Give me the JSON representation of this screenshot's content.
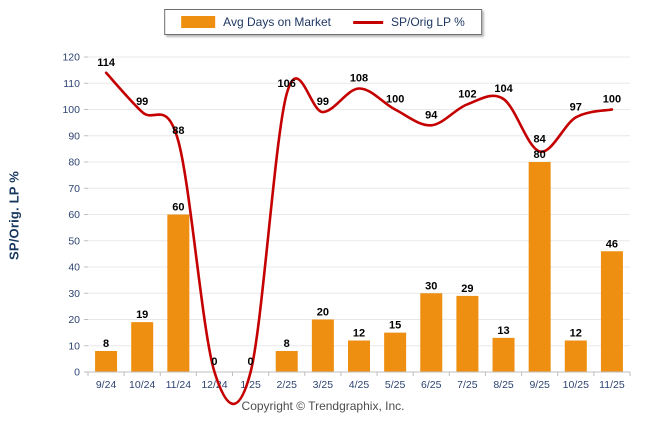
{
  "legend": {
    "bar_label": "Avg Days on Market",
    "line_label": "SP/Orig LP %"
  },
  "y_axis": {
    "title": "SP/Orig. LP %"
  },
  "footer": "Copyright © Trendgraphix, Inc.",
  "colors": {
    "bar": "#EE8F12",
    "line": "#C40000",
    "data_label": "#000000",
    "axis_text": "#2E4472",
    "grid": "#E8E8E8",
    "axis_line": "#BFBFBF",
    "legend_text": "#1F3864"
  },
  "chart_data": {
    "type": "bar",
    "subtype": "bar+line combo",
    "categories": [
      "9/24",
      "10/24",
      "11/24",
      "12/24",
      "1/25",
      "2/25",
      "3/25",
      "4/25",
      "5/25",
      "6/25",
      "7/25",
      "8/25",
      "9/25",
      "10/25",
      "11/25"
    ],
    "series": [
      {
        "name": "Avg Days on Market",
        "type": "bar",
        "color": "#EE8F12",
        "values": [
          8,
          19,
          60,
          0,
          0,
          8,
          20,
          12,
          15,
          30,
          29,
          13,
          80,
          12,
          46
        ]
      },
      {
        "name": "SP/Orig LP %",
        "type": "line",
        "color": "#C40000",
        "values": [
          114,
          99,
          88,
          0,
          0,
          106,
          99,
          108,
          100,
          94,
          102,
          104,
          84,
          97,
          100
        ]
      }
    ],
    "title": "",
    "xlabel": "",
    "ylabel": "SP/Orig. LP %",
    "ylim": [
      0,
      120
    ],
    "y_tick_step": 10,
    "grid": true,
    "legend_position": "top-center",
    "data_labels": true
  }
}
